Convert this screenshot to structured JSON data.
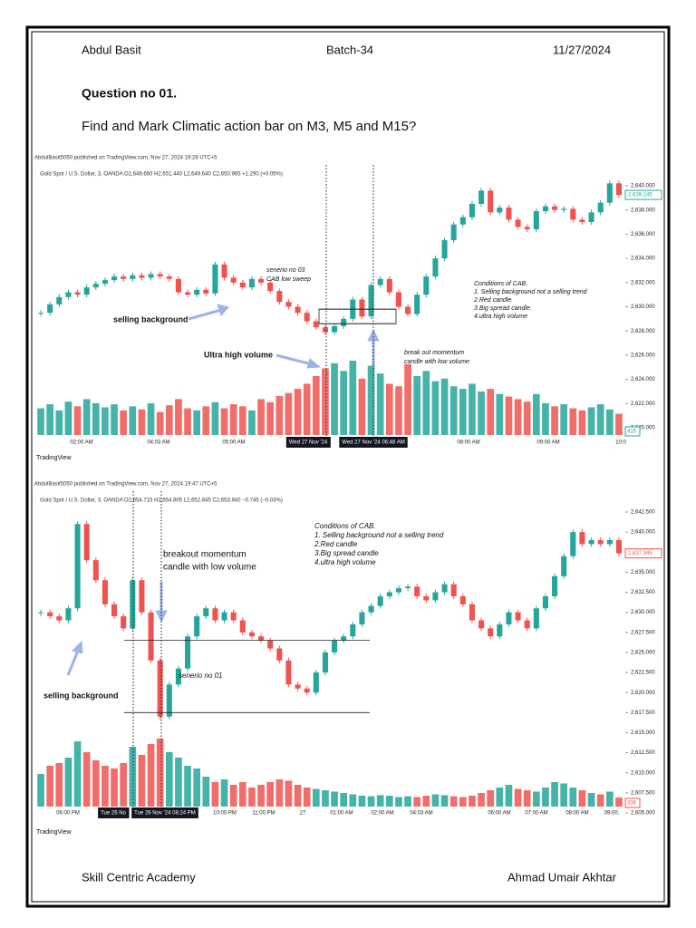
{
  "header": {
    "name": "Abdul Basit",
    "batch": "Batch-34",
    "date": "11/27/2024"
  },
  "question": {
    "title": "Question no 01.",
    "text": "Find and Mark Climatic action bar on M3, M5 and M15?"
  },
  "charts": [
    {
      "published": "AbdulBasit5050 published on TradingView.com, Nov 27, 2024 19:28 UTC+5",
      "symbol_line": "Gold Spot / U.S. Dollar, 3, OANDA  O2,649.660  H2,651.440  L2,649.640  C2,650.965  +1.290 (+0.05%)",
      "ylim": [
        2620,
        2640
      ],
      "yticks": [
        {
          "value": 2640,
          "label": "2,640.000"
        },
        {
          "value": 2638,
          "label": "2,638.000"
        },
        {
          "value": 2636,
          "label": "2,636.000"
        },
        {
          "value": 2634,
          "label": "2,634.000"
        },
        {
          "value": 2632,
          "label": "2,632.000"
        },
        {
          "value": 2630,
          "label": "2,630.000"
        },
        {
          "value": 2628,
          "label": "2,628.000"
        },
        {
          "value": 2626,
          "label": "2,626.000"
        },
        {
          "value": 2624,
          "label": "2,624.000"
        },
        {
          "value": 2622,
          "label": "2,622.000"
        },
        {
          "value": 2620,
          "label": "2,620.000"
        }
      ],
      "closes": [
        2629.5,
        2630.2,
        2630.8,
        2631.2,
        2631.0,
        2631.6,
        2631.9,
        2632.2,
        2632.5,
        2632.3,
        2632.6,
        2632.4,
        2632.7,
        2632.5,
        2632.3,
        2631.2,
        2631.0,
        2631.4,
        2631.1,
        2633.5,
        2632.4,
        2632.0,
        2631.6,
        2632.3,
        2632.0,
        2631.3,
        2630.4,
        2630.0,
        2629.5,
        2628.8,
        2628.3,
        2627.9,
        2628.4,
        2629.0,
        2630.6,
        2629.2,
        2631.8,
        2632.3,
        2631.2,
        2630.0,
        2629.4,
        2631.0,
        2632.5,
        2634.0,
        2635.5,
        2636.8,
        2637.4,
        2638.5,
        2639.6,
        2637.8,
        2638.2,
        2637.2,
        2636.6,
        2636.4,
        2637.9,
        2638.3,
        2638.0,
        2638.1,
        2637.2,
        2637.0,
        2637.8,
        2638.6,
        2640.2,
        2639.245
      ],
      "volumes": [
        520,
        600,
        480,
        650,
        560,
        700,
        620,
        540,
        600,
        480,
        560,
        500,
        620,
        450,
        580,
        700,
        520,
        480,
        560,
        640,
        520,
        600,
        560,
        480,
        700,
        640,
        760,
        820,
        900,
        1000,
        1150,
        1300,
        1400,
        1250,
        1450,
        1100,
        1350,
        1200,
        1000,
        950,
        1380,
        1150,
        1250,
        1050,
        1100,
        950,
        900,
        1000,
        850,
        900,
        800,
        750,
        700,
        650,
        800,
        620,
        560,
        600,
        520,
        480,
        540,
        600,
        500,
        415
      ],
      "last_price": {
        "value": 2639.245,
        "label": "2,639.245"
      },
      "time_labels": [
        "02:00 AM",
        "04:03 AM",
        "05:00 AM",
        "Wed 27 Nov '24",
        "Wed 27 Nov '24   06:48 AM",
        "08:00 AM",
        "09:00 AM",
        "10:0"
      ],
      "annotations": [
        "senerio no 03",
        "CAB low sweep",
        "selling background",
        "Ultra high volume",
        "break out momentum",
        "candle with low volume"
      ],
      "conditions": [
        "Conditions of CAB.",
        "1. Selling background not a selling trend",
        "2.Red candle",
        "3.Big spread candle",
        "4.ultra high volume"
      ],
      "brand": "TradingView"
    },
    {
      "published": "AbdulBasit5050 published on TradingView.com, Nov 27, 2024 19:47 UTC+5",
      "symbol_line": "Gold Spot / U.S. Dollar, 3, OANDA  O2,654.715  H2,654.805  L2,652.845  C2,653.940  −0.745 (−0.03%)",
      "ylim": [
        2605,
        2642.5
      ],
      "yticks": [
        {
          "value": 2642.5,
          "label": "2,642.500"
        },
        {
          "value": 2640,
          "label": "2,640.000"
        },
        {
          "value": 2637.5,
          "label": "2,637.500"
        },
        {
          "value": 2635,
          "label": "2,635.000"
        },
        {
          "value": 2632.5,
          "label": "2,632.500"
        },
        {
          "value": 2630,
          "label": "2,630.000"
        },
        {
          "value": 2627.5,
          "label": "2,627.500"
        },
        {
          "value": 2625,
          "label": "2,625.000"
        },
        {
          "value": 2622.5,
          "label": "2,622.500"
        },
        {
          "value": 2620,
          "label": "2,620.000"
        },
        {
          "value": 2617.5,
          "label": "2,617.500"
        },
        {
          "value": 2615,
          "label": "2,615.000"
        },
        {
          "value": 2612.5,
          "label": "2,612.500"
        },
        {
          "value": 2610,
          "label": "2,610.000"
        },
        {
          "value": 2607.5,
          "label": "2,607.500"
        },
        {
          "value": 2605,
          "label": "2,605.000"
        }
      ],
      "closes": [
        2630.0,
        2629.5,
        2629.0,
        2630.5,
        2641.0,
        2636.5,
        2634.0,
        2631.0,
        2629.5,
        2628.0,
        2634.0,
        2630.0,
        2624.0,
        2617.0,
        2621.0,
        2623.0,
        2627.0,
        2629.5,
        2630.5,
        2629.0,
        2630.0,
        2629.0,
        2627.5,
        2627.0,
        2626.5,
        2625.5,
        2624.0,
        2621.0,
        2620.5,
        2620.0,
        2622.5,
        2625.0,
        2626.5,
        2627.0,
        2628.5,
        2630.0,
        2630.8,
        2632.0,
        2632.5,
        2633.0,
        2633.2,
        2632.0,
        2631.5,
        2632.5,
        2633.5,
        2632.0,
        2631.0,
        2629.0,
        2628.0,
        2627.0,
        2628.5,
        2630.0,
        2629.0,
        2628.0,
        2630.5,
        2632.0,
        2634.5,
        2637.0,
        2640.0,
        2638.5,
        2639.0,
        2638.5,
        2639.0,
        2637.345
      ],
      "volumes": [
        1200,
        1500,
        1600,
        1800,
        2400,
        2000,
        1700,
        1500,
        1400,
        1600,
        2200,
        1900,
        2300,
        2500,
        2000,
        1800,
        1500,
        1400,
        1100,
        900,
        1000,
        800,
        900,
        700,
        800,
        900,
        1000,
        950,
        800,
        700,
        650,
        600,
        550,
        500,
        450,
        400,
        380,
        420,
        400,
        350,
        380,
        350,
        400,
        450,
        420,
        380,
        350,
        400,
        500,
        600,
        700,
        800,
        650,
        600,
        550,
        700,
        900,
        850,
        700,
        600,
        500,
        450,
        550,
        336
      ],
      "last_price": {
        "value": 2637.345,
        "label": "2,637.345"
      },
      "time_labels": [
        "06:00 PM",
        "Tue 26 No",
        "Tue 26 Nov '24   08:24 PM",
        "10:00 PM",
        "11:00 PM",
        "27",
        "01:00 AM",
        "02:00 AM",
        "04:03 AM",
        "06:00 AM",
        "07:00 AM",
        "08:00 AM",
        "09:00."
      ],
      "annotations": [
        "breakout momentum",
        "candle with low volume",
        "senerio no 01",
        "selling background"
      ],
      "conditions": [
        "Conditions of CAB.",
        "1. Selling background not a selling trend",
        "2.Red candle",
        "3.Big spread candle",
        "4.ultra high volume"
      ],
      "brand": "TradingView"
    }
  ],
  "footer": {
    "left": "Skill Centric Academy",
    "right": "Ahmad Umair Akhtar"
  }
}
